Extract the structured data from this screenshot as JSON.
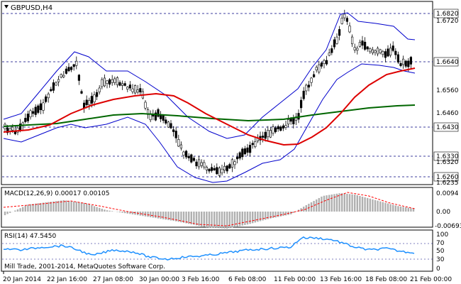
{
  "symbol_label": "GBPUSD,H4",
  "copyright": "Mill Trade, 2001-2014, MetaQuotes Software Corp.",
  "colors": {
    "bollinger": "#0000cc",
    "ma_fast": "#dd0000",
    "ma_slow": "#006600",
    "candle": "#000000",
    "grid_line": "#000080",
    "histogram": "#b0b0b0",
    "signal": "#ff0000",
    "rsi": "#1e90ff",
    "price_box": "#ffffff"
  },
  "main_panel": {
    "axis_labels": [
      "1.6820",
      "1.6720",
      "1.6640",
      "1.6560",
      "1.6460",
      "1.6430",
      "1.6320",
      "1.6330",
      "1.6235",
      "1.6260"
    ],
    "level_lines": [
      "1.6820",
      "1.6660",
      "1.6430",
      "1.6330",
      "1.6260"
    ]
  },
  "macd_panel": {
    "label": "MACD(12,26,9) 0.00017 0.00105",
    "axis_labels": [
      "0.0094",
      "0.00",
      "-0.00693"
    ]
  },
  "rsi_panel": {
    "label": "RSI(14) 47.5450",
    "axis_labels": [
      "100",
      "70",
      "50",
      "30",
      "0"
    ]
  },
  "time_axis": [
    "20 Jan 2014",
    "22 Jan 16:00",
    "27 Jan 08:00",
    "30 Jan 00:00",
    "3 Feb 16:00",
    "6 Feb 08:00",
    "11 Feb 00:00",
    "13 Feb 16:00",
    "18 Feb 08:00",
    "21 Feb 00:00"
  ]
}
